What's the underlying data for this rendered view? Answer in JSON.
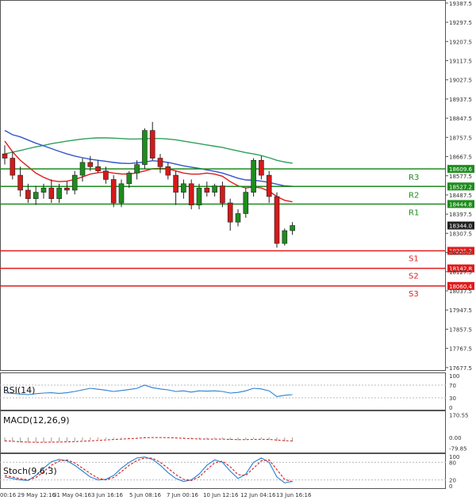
{
  "chart_data": [
    {
      "type": "candlestick",
      "panel": "price",
      "y_axis_ticks": [
        19387.5,
        19297.5,
        19207.5,
        19117.5,
        19027.5,
        18937.5,
        18847.5,
        18757.5,
        18667.5,
        18577.5,
        18487.5,
        18397.5,
        18307.5,
        18217.5,
        18127.5,
        18037.5,
        17947.5,
        17857.5,
        17767.5,
        17677.5
      ],
      "ylim": [
        17662,
        19402
      ],
      "x_tick_labels": [
        "00:16",
        "29 May 12:16",
        "31 May 04:16",
        "3 Jun 16:16",
        "5 Jun 08:16",
        "7 Jun 00:16",
        "10 Jun 12:16",
        "12 Jun 04:16",
        "13 Jun 16:16"
      ],
      "last_price": 18344.0,
      "levels": [
        {
          "name": "R3",
          "value": 18609.6,
          "price_label": "18609.6",
          "color": "#1e8c1e"
        },
        {
          "name": "R2",
          "value": 18527.2,
          "price_label": "18527.2",
          "color": "#1e8c1e"
        },
        {
          "name": "R1",
          "value": 18444.8,
          "price_label": "18444.8",
          "color": "#1e8c1e"
        },
        {
          "name": "S1",
          "value": 18225.2,
          "price_label": "18225.2",
          "color": "#e01c1c"
        },
        {
          "name": "S2",
          "value": 18142.8,
          "price_label": "18142.8",
          "color": "#e01c1c"
        },
        {
          "name": "S3",
          "value": 18060.4,
          "price_label": "18060.4",
          "color": "#e01c1c"
        }
      ],
      "colors": {
        "up": "#1e8c1e",
        "down": "#d41a1a",
        "ma_fast": "#e01c1c",
        "ma_mid": "#3355cc",
        "ma_slow": "#2ea05a"
      },
      "candles_ohlc": [
        [
          18680,
          18720,
          18630,
          18660
        ],
        [
          18660,
          18690,
          18560,
          18580
        ],
        [
          18580,
          18620,
          18480,
          18510
        ],
        [
          18510,
          18540,
          18450,
          18470
        ],
        [
          18470,
          18530,
          18440,
          18500
        ],
        [
          18500,
          18540,
          18470,
          18520
        ],
        [
          18520,
          18560,
          18450,
          18470
        ],
        [
          18470,
          18540,
          18450,
          18520
        ],
        [
          18520,
          18550,
          18490,
          18510
        ],
        [
          18510,
          18600,
          18490,
          18580
        ],
        [
          18580,
          18660,
          18550,
          18640
        ],
        [
          18640,
          18670,
          18600,
          18620
        ],
        [
          18620,
          18650,
          18590,
          18600
        ],
        [
          18600,
          18620,
          18540,
          18560
        ],
        [
          18560,
          18580,
          18430,
          18450
        ],
        [
          18450,
          18560,
          18430,
          18540
        ],
        [
          18540,
          18600,
          18520,
          18590
        ],
        [
          18590,
          18650,
          18560,
          18630
        ],
        [
          18630,
          18800,
          18610,
          18790
        ],
        [
          18790,
          18830,
          18650,
          18660
        ],
        [
          18660,
          18680,
          18590,
          18620
        ],
        [
          18620,
          18640,
          18560,
          18580
        ],
        [
          18580,
          18600,
          18440,
          18500
        ],
        [
          18500,
          18560,
          18470,
          18540
        ],
        [
          18540,
          18560,
          18420,
          18440
        ],
        [
          18440,
          18540,
          18420,
          18520
        ],
        [
          18520,
          18550,
          18480,
          18500
        ],
        [
          18500,
          18540,
          18480,
          18530
        ],
        [
          18530,
          18550,
          18430,
          18450
        ],
        [
          18450,
          18470,
          18320,
          18360
        ],
        [
          18360,
          18420,
          18340,
          18400
        ],
        [
          18400,
          18520,
          18380,
          18500
        ],
        [
          18500,
          18660,
          18480,
          18650
        ],
        [
          18650,
          18670,
          18560,
          18580
        ],
        [
          18580,
          18600,
          18450,
          18480
        ],
        [
          18480,
          18500,
          18240,
          18260
        ],
        [
          18260,
          18330,
          18250,
          18320
        ],
        [
          18320,
          18360,
          18300,
          18344
        ]
      ],
      "ma_fast": [
        18740,
        18690,
        18650,
        18620,
        18590,
        18570,
        18555,
        18550,
        18552,
        18560,
        18572,
        18585,
        18592,
        18596,
        18590,
        18586,
        18585,
        18592,
        18600,
        18610,
        18612,
        18610,
        18600,
        18590,
        18585,
        18585,
        18590,
        18585,
        18575,
        18550,
        18530,
        18520,
        18525,
        18520,
        18505,
        18480,
        18462,
        18455
      ],
      "ma_mid": [
        18790,
        18770,
        18760,
        18745,
        18730,
        18718,
        18705,
        18692,
        18680,
        18670,
        18662,
        18655,
        18650,
        18645,
        18640,
        18636,
        18635,
        18638,
        18642,
        18648,
        18645,
        18640,
        18632,
        18624,
        18618,
        18612,
        18605,
        18598,
        18590,
        18578,
        18566,
        18558,
        18556,
        18552,
        18546,
        18538,
        18530,
        18528
      ],
      "ma_slow": [
        18680,
        18688,
        18696,
        18705,
        18713,
        18720,
        18728,
        18734,
        18740,
        18745,
        18750,
        18753,
        18755,
        18755,
        18754,
        18752,
        18750,
        18750,
        18751,
        18752,
        18752,
        18750,
        18746,
        18740,
        18734,
        18728,
        18722,
        18716,
        18710,
        18702,
        18694,
        18686,
        18680,
        18672,
        18662,
        18650,
        18642,
        18636
      ]
    },
    {
      "type": "line",
      "panel": "rsi",
      "title": "RSI(14)",
      "y_axis_ticks": [
        100,
        70,
        30,
        0
      ],
      "ylim": [
        0,
        100
      ],
      "values": [
        46,
        44,
        42,
        40,
        43,
        45,
        46,
        44,
        46,
        50,
        55,
        60,
        57,
        54,
        50,
        53,
        56,
        60,
        70,
        62,
        58,
        55,
        50,
        52,
        48,
        52,
        51,
        52,
        50,
        45,
        47,
        52,
        60,
        58,
        52,
        34,
        38,
        40
      ]
    },
    {
      "type": "macd",
      "panel": "macd",
      "title": "MACD(12,26,9)",
      "y_axis_ticks": [
        170.55,
        0.0,
        -79.85
      ],
      "tick_labels": [
        "170.55",
        "0.00",
        "-79.85"
      ],
      "ylim": [
        -95,
        180
      ],
      "histogram": [
        -30,
        -34,
        -38,
        -40,
        -38,
        -36,
        -34,
        -32,
        -30,
        -26,
        -22,
        -18,
        -14,
        -10,
        -8,
        -6,
        -4,
        -2,
        4,
        2,
        0,
        -2,
        -6,
        -10,
        -12,
        -14,
        -12,
        -10,
        -12,
        -18,
        -20,
        -16,
        -10,
        -12,
        -16,
        -28,
        -30,
        -28
      ],
      "signal": [
        -25,
        -28,
        -32,
        -35,
        -36,
        -36,
        -35,
        -34,
        -33,
        -31,
        -28,
        -25,
        -22,
        -18,
        -15,
        -12,
        -9,
        -6,
        -2,
        0,
        0,
        -1,
        -3,
        -6,
        -9,
        -11,
        -12,
        -12,
        -12,
        -14,
        -16,
        -16,
        -14,
        -13,
        -14,
        -19,
        -23,
        -26
      ]
    },
    {
      "type": "line",
      "panel": "stoch",
      "title": "Stoch(9,6,3)",
      "y_axis_ticks": [
        100,
        80,
        20,
        0
      ],
      "ylim": [
        0,
        100
      ],
      "series": [
        {
          "color": "#2a7fd4",
          "values": [
            30,
            25,
            20,
            18,
            35,
            60,
            82,
            90,
            85,
            70,
            50,
            30,
            20,
            22,
            35,
            60,
            80,
            95,
            98,
            90,
            70,
            45,
            25,
            15,
            20,
            40,
            70,
            88,
            80,
            50,
            25,
            40,
            80,
            95,
            80,
            30,
            10,
            15
          ]
        },
        {
          "color": "#d41a1a",
          "values": [
            35,
            30,
            24,
            20,
            28,
            48,
            70,
            84,
            88,
            78,
            60,
            42,
            26,
            20,
            28,
            48,
            70,
            86,
            95,
            94,
            80,
            60,
            38,
            22,
            18,
            30,
            55,
            78,
            84,
            65,
            38,
            35,
            60,
            85,
            88,
            55,
            22,
            14
          ]
        }
      ]
    }
  ]
}
